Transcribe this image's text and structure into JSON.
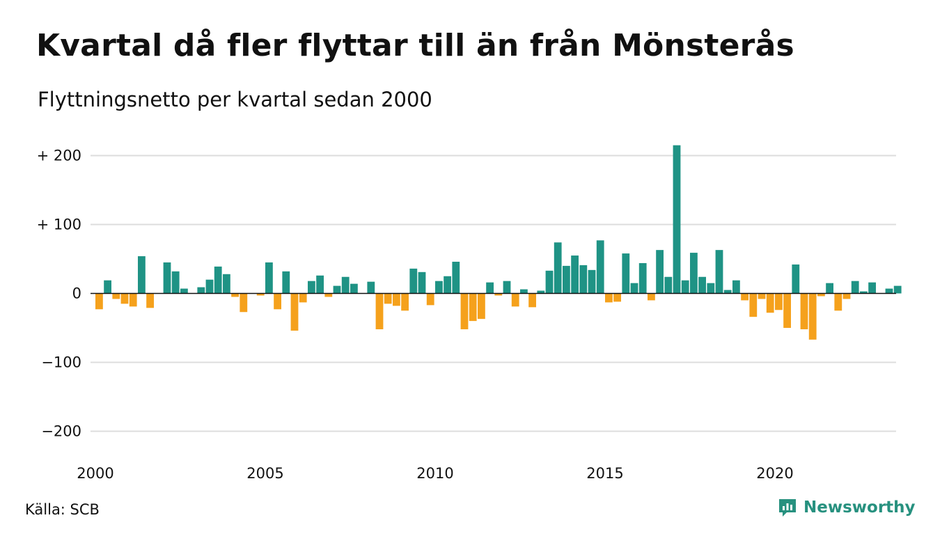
{
  "title": "Kvartal då fler flyttar till än från Mönsterås",
  "subtitle": "Flyttningsnetto per kvartal sedan 2000",
  "source": "Källa: SCB",
  "brand": {
    "name": "Newsworthy",
    "icon": "newsworthy-logo-icon"
  },
  "colors": {
    "positive": "#1f9385",
    "negative": "#f5a11c",
    "grid": "#dddddd",
    "zero": "#111111"
  },
  "chart_data": {
    "type": "bar",
    "xlabel": "",
    "ylabel": "",
    "ylim": [
      -200,
      200
    ],
    "yticks": [
      {
        "value": 200,
        "label": "+ 200"
      },
      {
        "value": 100,
        "label": "+ 100"
      },
      {
        "value": 0,
        "label": "0"
      },
      {
        "value": -100,
        "label": "−100"
      },
      {
        "value": -200,
        "label": "−200"
      }
    ],
    "xticks": [
      "2000",
      "2005",
      "2010",
      "2015",
      "2020"
    ],
    "grid": true,
    "categories": [
      "2000 Q1",
      "2000 Q2",
      "2000 Q3",
      "2000 Q4",
      "2001 Q1",
      "2001 Q2",
      "2001 Q3",
      "2001 Q4",
      "2002 Q1",
      "2002 Q2",
      "2002 Q3",
      "2002 Q4",
      "2003 Q1",
      "2003 Q2",
      "2003 Q3",
      "2003 Q4",
      "2004 Q1",
      "2004 Q2",
      "2004 Q3",
      "2004 Q4",
      "2005 Q1",
      "2005 Q2",
      "2005 Q3",
      "2005 Q4",
      "2006 Q1",
      "2006 Q2",
      "2006 Q3",
      "2006 Q4",
      "2007 Q1",
      "2007 Q2",
      "2007 Q3",
      "2007 Q4",
      "2008 Q1",
      "2008 Q2",
      "2008 Q3",
      "2008 Q4",
      "2009 Q1",
      "2009 Q2",
      "2009 Q3",
      "2009 Q4",
      "2010 Q1",
      "2010 Q2",
      "2010 Q3",
      "2010 Q4",
      "2011 Q1",
      "2011 Q2",
      "2011 Q3",
      "2011 Q4",
      "2012 Q1",
      "2012 Q2",
      "2012 Q3",
      "2012 Q4",
      "2013 Q1",
      "2013 Q2",
      "2013 Q3",
      "2013 Q4",
      "2014 Q1",
      "2014 Q2",
      "2014 Q3",
      "2014 Q4",
      "2015 Q1",
      "2015 Q2",
      "2015 Q3",
      "2015 Q4",
      "2016 Q1",
      "2016 Q2",
      "2016 Q3",
      "2016 Q4",
      "2017 Q1",
      "2017 Q2",
      "2017 Q3",
      "2017 Q4",
      "2018 Q1",
      "2018 Q2",
      "2018 Q3",
      "2018 Q4",
      "2019 Q1",
      "2019 Q2",
      "2019 Q3",
      "2019 Q4",
      "2020 Q1",
      "2020 Q2",
      "2020 Q3",
      "2020 Q4",
      "2021 Q1",
      "2021 Q2",
      "2021 Q3",
      "2021 Q4",
      "2022 Q1",
      "2022 Q2",
      "2022 Q3",
      "2022 Q4",
      "2023 Q1",
      "2023 Q2",
      "2023 Q3",
      "2023 Q4"
    ],
    "values": [
      -23,
      19,
      -8,
      -15,
      -19,
      54,
      -21,
      0,
      45,
      32,
      7,
      0,
      9,
      20,
      39,
      28,
      -5,
      -27,
      0,
      -3,
      45,
      -23,
      32,
      -54,
      -13,
      18,
      26,
      -5,
      11,
      24,
      14,
      0,
      17,
      -52,
      -15,
      -18,
      -25,
      36,
      31,
      -17,
      18,
      25,
      46,
      -52,
      -40,
      -37,
      16,
      -3,
      18,
      -19,
      6,
      -20,
      4,
      33,
      74,
      40,
      55,
      41,
      34,
      77,
      -13,
      -12,
      58,
      15,
      44,
      -10,
      63,
      24,
      215,
      19,
      59,
      24,
      15,
      63,
      5,
      19,
      -10,
      -34,
      -8,
      -28,
      -24,
      -50,
      42,
      -52,
      -67,
      -4,
      15,
      -25,
      -8,
      18,
      3,
      16,
      0,
      7,
      11,
      0
    ]
  }
}
